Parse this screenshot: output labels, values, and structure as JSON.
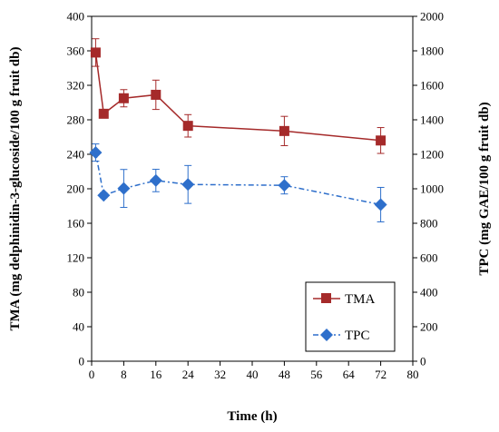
{
  "chart_data": {
    "type": "line",
    "title": "",
    "xlabel": "Time (h)",
    "ylabel_left": "TMA (mg delphinidin-3-glucoside/100 g fruit db)",
    "ylabel_right": "TPC (mg GAE/100 g fruit db)",
    "xlim": [
      0,
      80
    ],
    "x_ticks": [
      "0",
      "8",
      "16",
      "24",
      "32",
      "40",
      "48",
      "56",
      "64",
      "72",
      "80"
    ],
    "ylim_left": [
      0,
      400
    ],
    "y_ticks_left": [
      "0",
      "40",
      "80",
      "120",
      "160",
      "200",
      "240",
      "280",
      "320",
      "360",
      "400"
    ],
    "ylim_right": [
      0,
      2000
    ],
    "y_ticks_right": [
      "0",
      "200",
      "400",
      "600",
      "800",
      "1000",
      "1200",
      "1400",
      "1600",
      "1800",
      "2000"
    ],
    "grid": false,
    "legend_position": "bottom-right",
    "series": [
      {
        "name": "TMA",
        "axis": "left",
        "color": "#a52a2a",
        "marker": "square",
        "line_style": "solid",
        "x": [
          1,
          3,
          8,
          16,
          24,
          48,
          72
        ],
        "values": [
          358,
          287,
          305,
          309,
          273,
          267,
          256
        ],
        "errors": [
          16,
          3,
          10,
          17,
          13,
          17,
          15
        ]
      },
      {
        "name": "TPC",
        "axis": "right",
        "color": "#2e6fcb",
        "marker": "diamond",
        "line_style": "dash-dot",
        "x": [
          1,
          3,
          8,
          16,
          24,
          48,
          72
        ],
        "values": [
          1210,
          962,
          1002,
          1048,
          1025,
          1020,
          908
        ],
        "errors": [
          50,
          15,
          110,
          65,
          110,
          50,
          100
        ]
      }
    ]
  }
}
